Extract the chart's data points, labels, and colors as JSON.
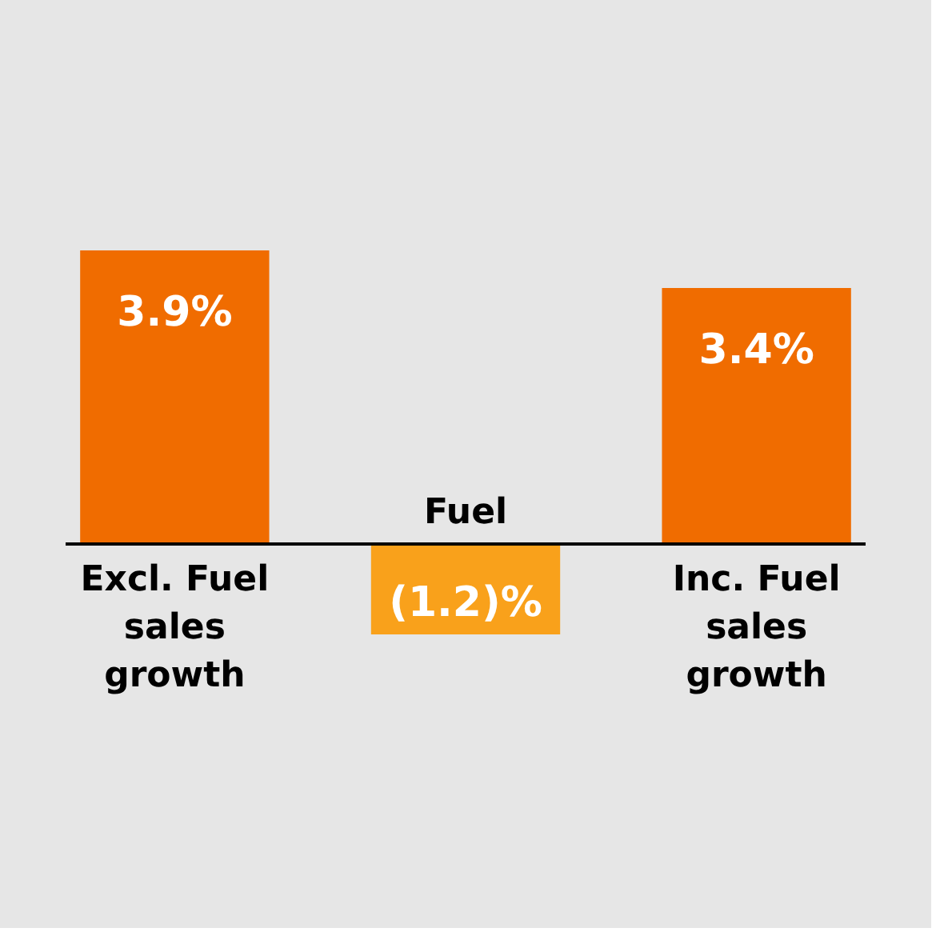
{
  "chart_data": {
    "type": "bar",
    "categories": [
      "Excl. Fuel sales growth",
      "Fuel",
      "Inc. Fuel sales growth"
    ],
    "values": [
      3.9,
      -1.2,
      3.4
    ],
    "colors": [
      "#f06c00",
      "#f9a11b",
      "#f06c00"
    ],
    "value_labels": [
      "3.9%",
      "(1.2)%",
      "3.4%"
    ]
  }
}
